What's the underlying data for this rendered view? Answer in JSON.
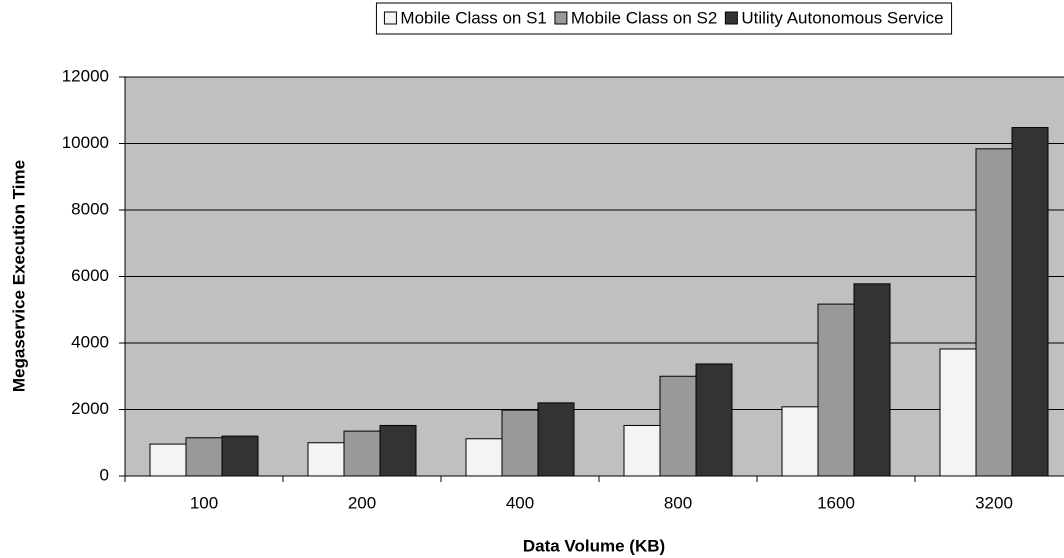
{
  "chart_data": {
    "type": "bar",
    "categories": [
      "100",
      "200",
      "400",
      "800",
      "1600",
      "3200"
    ],
    "series": [
      {
        "name": "Mobile Class on S1",
        "color": "#f4f4f4",
        "values": [
          960,
          1000,
          1120,
          1520,
          2080,
          3820
        ]
      },
      {
        "name": "Mobile Class on S2",
        "color": "#999999",
        "values": [
          1150,
          1350,
          1980,
          3000,
          5170,
          9840
        ]
      },
      {
        "name": "Utility Autonomous Service",
        "color": "#333333",
        "values": [
          1200,
          1520,
          2200,
          3370,
          5780,
          10480
        ]
      }
    ],
    "x_label": "Data Volume (KB)",
    "y_label": "Megaservice Execution Time",
    "ylim": [
      0,
      12000
    ],
    "yticks": [
      0,
      2000,
      4000,
      6000,
      8000,
      10000,
      12000
    ],
    "grid": true,
    "legend": "top"
  }
}
